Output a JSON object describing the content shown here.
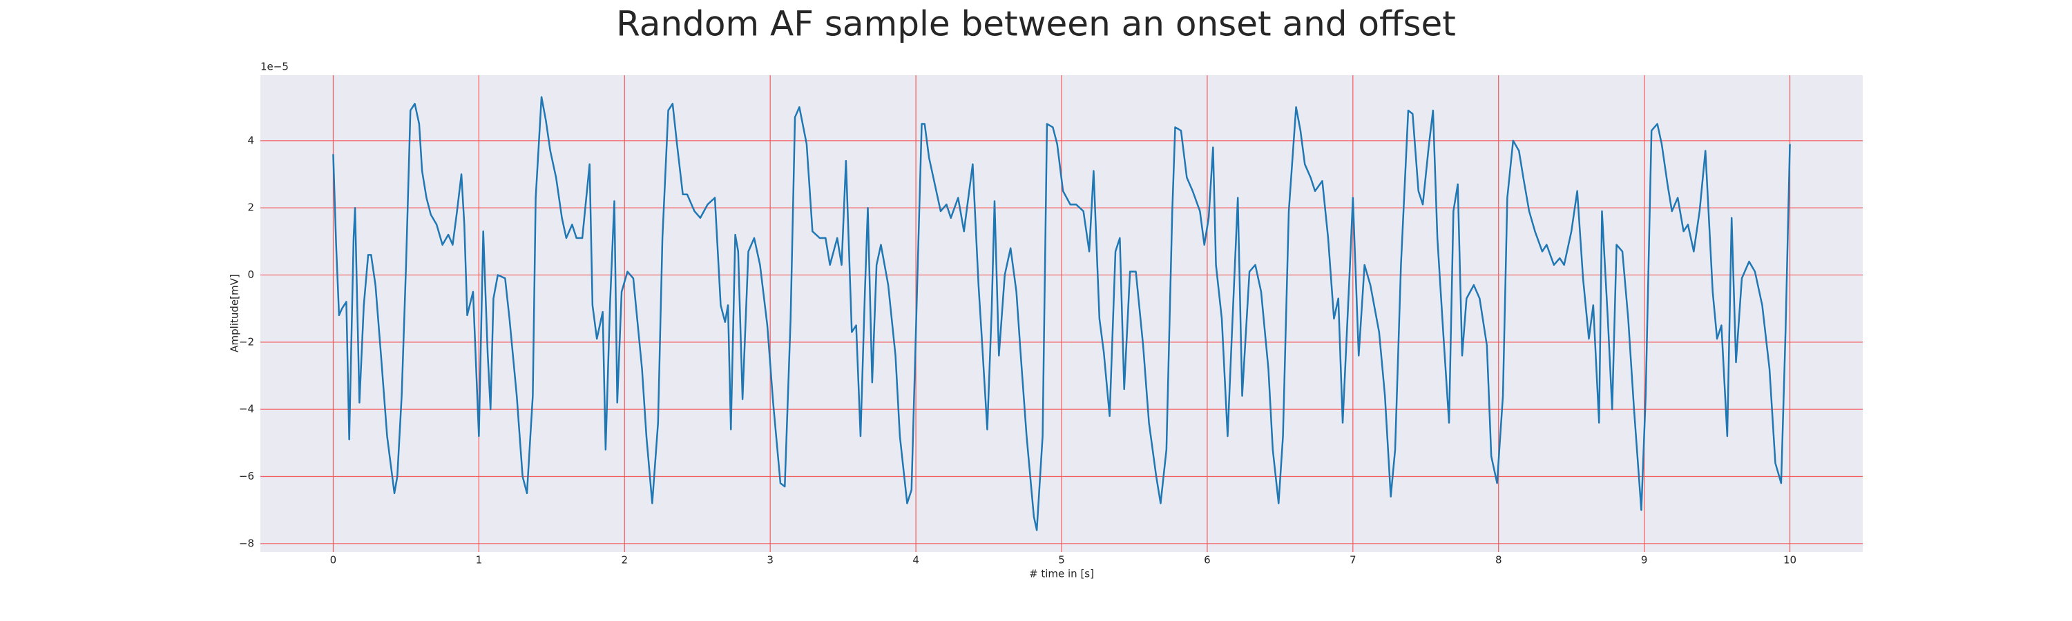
{
  "chart_data": {
    "type": "line",
    "title": "Random AF sample between an onset and offset",
    "x_label": "# time in [s]",
    "y_label": "Amplitude[mV]",
    "y_offset_label": "1e−5",
    "x": [
      0,
      0.02,
      0.04,
      0.06,
      0.09,
      0.11,
      0.14,
      0.15,
      0.18,
      0.21,
      0.24,
      0.26,
      0.29,
      0.33,
      0.37,
      0.42,
      0.44,
      0.47,
      0.5,
      0.53,
      0.56,
      0.59,
      0.61,
      0.64,
      0.67,
      0.71,
      0.75,
      0.79,
      0.82,
      0.85,
      0.88,
      0.9,
      0.92,
      0.96,
      1.0,
      1.03,
      1.06,
      1.08,
      1.1,
      1.13,
      1.18,
      1.21,
      1.26,
      1.3,
      1.33,
      1.37,
      1.39,
      1.43,
      1.46,
      1.49,
      1.53,
      1.57,
      1.6,
      1.64,
      1.67,
      1.71,
      1.76,
      1.78,
      1.81,
      1.85,
      1.87,
      1.9,
      1.93,
      1.95,
      1.98,
      2.02,
      2.06,
      2.12,
      2.15,
      2.19,
      2.23,
      2.26,
      2.3,
      2.33,
      2.36,
      2.4,
      2.43,
      2.48,
      2.52,
      2.57,
      2.62,
      2.66,
      2.69,
      2.71,
      2.73,
      2.76,
      2.78,
      2.81,
      2.85,
      2.89,
      2.93,
      2.98,
      3.02,
      3.07,
      3.1,
      3.14,
      3.17,
      3.2,
      3.25,
      3.29,
      3.34,
      3.38,
      3.41,
      3.46,
      3.49,
      3.52,
      3.56,
      3.59,
      3.62,
      3.65,
      3.67,
      3.7,
      3.73,
      3.76,
      3.81,
      3.86,
      3.89,
      3.94,
      3.97,
      4.0,
      4.04,
      4.06,
      4.09,
      4.14,
      4.17,
      4.21,
      4.24,
      4.29,
      4.33,
      4.39,
      4.43,
      4.45,
      4.49,
      4.52,
      4.54,
      4.57,
      4.61,
      4.65,
      4.69,
      4.72,
      4.76,
      4.81,
      4.83,
      4.87,
      4.9,
      4.94,
      4.97,
      5.01,
      5.06,
      5.1,
      5.15,
      5.19,
      5.22,
      5.26,
      5.29,
      5.33,
      5.37,
      5.4,
      5.43,
      5.47,
      5.51,
      5.56,
      5.6,
      5.65,
      5.68,
      5.72,
      5.76,
      5.78,
      5.82,
      5.86,
      5.9,
      5.95,
      5.98,
      6.01,
      6.04,
      6.06,
      6.1,
      6.14,
      6.17,
      6.21,
      6.24,
      6.29,
      6.33,
      6.37,
      6.42,
      6.45,
      6.49,
      6.52,
      6.56,
      6.61,
      6.64,
      6.67,
      6.71,
      6.74,
      6.79,
      6.83,
      6.87,
      6.9,
      6.93,
      6.98,
      7.0,
      7.04,
      7.08,
      7.12,
      7.18,
      7.22,
      7.26,
      7.29,
      7.33,
      7.38,
      7.41,
      7.45,
      7.48,
      7.52,
      7.55,
      7.58,
      7.62,
      7.66,
      7.69,
      7.72,
      7.75,
      7.78,
      7.83,
      7.87,
      7.92,
      7.95,
      7.99,
      8.03,
      8.06,
      8.1,
      8.14,
      8.17,
      8.21,
      8.25,
      8.3,
      8.33,
      8.38,
      8.42,
      8.45,
      8.5,
      8.54,
      8.58,
      8.62,
      8.65,
      8.69,
      8.71,
      8.75,
      8.78,
      8.81,
      8.85,
      8.89,
      8.93,
      8.98,
      9.01,
      9.05,
      9.09,
      9.12,
      9.16,
      9.19,
      9.23,
      9.27,
      9.3,
      9.34,
      9.38,
      9.42,
      9.47,
      9.5,
      9.53,
      9.57,
      9.6,
      9.63,
      9.67,
      9.72,
      9.76,
      9.81,
      9.86,
      9.9,
      9.94,
      9.97,
      10.0
    ],
    "series": [
      {
        "color": "#1f77b4",
        "values": [
          3.6,
          0.9,
          -1.2,
          -1.0,
          -0.8,
          -4.9,
          1.1,
          2.0,
          -3.8,
          -0.9,
          0.6,
          0.6,
          -0.3,
          -2.5,
          -4.8,
          -6.5,
          -6.0,
          -3.6,
          0.3,
          4.9,
          5.1,
          4.5,
          3.1,
          2.3,
          1.8,
          1.5,
          0.9,
          1.2,
          0.9,
          1.9,
          3.0,
          1.5,
          -1.2,
          -0.5,
          -4.8,
          1.3,
          -2.3,
          -4.0,
          -0.7,
          0,
          -0.1,
          -1.3,
          -3.6,
          -6.0,
          -6.5,
          -3.6,
          2.3,
          5.3,
          4.6,
          3.7,
          2.9,
          1.7,
          1.1,
          1.5,
          1.1,
          1.1,
          3.3,
          -0.9,
          -1.9,
          -1.1,
          -5.2,
          -0.9,
          2.2,
          -3.8,
          -0.5,
          0.1,
          -0.1,
          -2.8,
          -4.8,
          -6.8,
          -4.4,
          1.1,
          4.9,
          5.1,
          3.9,
          2.4,
          2.4,
          1.9,
          1.7,
          2.1,
          2.3,
          -0.9,
          -1.4,
          -0.9,
          -4.6,
          1.2,
          0.7,
          -3.7,
          0.7,
          1.1,
          0.3,
          -1.5,
          -3.8,
          -6.2,
          -6.3,
          -1.3,
          4.7,
          5.0,
          3.9,
          1.3,
          1.1,
          1.1,
          0.3,
          1.1,
          0.3,
          3.4,
          -1.7,
          -1.5,
          -4.8,
          -0.5,
          2.0,
          -3.2,
          0.3,
          0.9,
          -0.3,
          -2.4,
          -4.8,
          -6.8,
          -6.4,
          -1.7,
          4.5,
          4.5,
          3.5,
          2.5,
          1.9,
          2.1,
          1.7,
          2.3,
          1.3,
          3.3,
          -0.3,
          -1.7,
          -4.6,
          -1.1,
          2.2,
          -2.4,
          0,
          0.8,
          -0.5,
          -2.4,
          -4.8,
          -7.2,
          -7.6,
          -4.8,
          4.5,
          4.4,
          3.9,
          2.5,
          2.1,
          2.1,
          1.9,
          0.7,
          3.1,
          -1.3,
          -2.3,
          -4.2,
          0.7,
          1.1,
          -3.4,
          0.1,
          0.1,
          -2.1,
          -4.4,
          -6.0,
          -6.8,
          -5.2,
          1.9,
          4.4,
          4.3,
          2.9,
          2.5,
          1.9,
          0.9,
          1.7,
          3.8,
          0.3,
          -1.3,
          -4.8,
          -1.7,
          2.3,
          -3.6,
          0.1,
          0.3,
          -0.5,
          -2.8,
          -5.2,
          -6.8,
          -4.8,
          1.9,
          5.0,
          4.3,
          3.3,
          2.9,
          2.5,
          2.8,
          1.1,
          -1.3,
          -0.7,
          -4.4,
          0.3,
          2.3,
          -2.4,
          0.3,
          -0.3,
          -1.7,
          -3.6,
          -6.6,
          -5.2,
          0.3,
          4.9,
          4.8,
          2.5,
          2.1,
          3.8,
          4.9,
          1.1,
          -1.7,
          -4.4,
          1.9,
          2.7,
          -2.4,
          -0.7,
          -0.3,
          -0.7,
          -2.1,
          -5.4,
          -6.2,
          -3.6,
          2.3,
          4.0,
          3.7,
          2.9,
          1.9,
          1.3,
          0.7,
          0.9,
          0.3,
          0.5,
          0.3,
          1.3,
          2.5,
          -0.1,
          -1.9,
          -0.9,
          -4.4,
          1.9,
          -1.3,
          -4.0,
          0.9,
          0.7,
          -1.3,
          -4.0,
          -7.0,
          -3.6,
          4.3,
          4.5,
          3.9,
          2.7,
          1.9,
          2.3,
          1.3,
          1.5,
          0.7,
          1.9,
          3.7,
          -0.5,
          -1.9,
          -1.5,
          -4.8,
          1.7,
          -2.6,
          -0.1,
          0.4,
          0.1,
          -0.9,
          -2.8,
          -5.6,
          -6.2,
          -1.7,
          3.9
        ]
      }
    ],
    "xlim": [
      -0.5,
      10.5
    ],
    "ylim": [
      -8.25,
      5.95
    ],
    "xticks": [
      0,
      1,
      2,
      3,
      4,
      5,
      6,
      7,
      8,
      9,
      10
    ],
    "yticks": [
      {
        "value": -8,
        "label": "−8"
      },
      {
        "value": -6,
        "label": "−6"
      },
      {
        "value": -4,
        "label": "−4"
      },
      {
        "value": -2,
        "label": "−2"
      },
      0,
      2,
      4
    ],
    "grid": true,
    "grid_color": "#f25c5c",
    "background": "#eaeaf2"
  }
}
